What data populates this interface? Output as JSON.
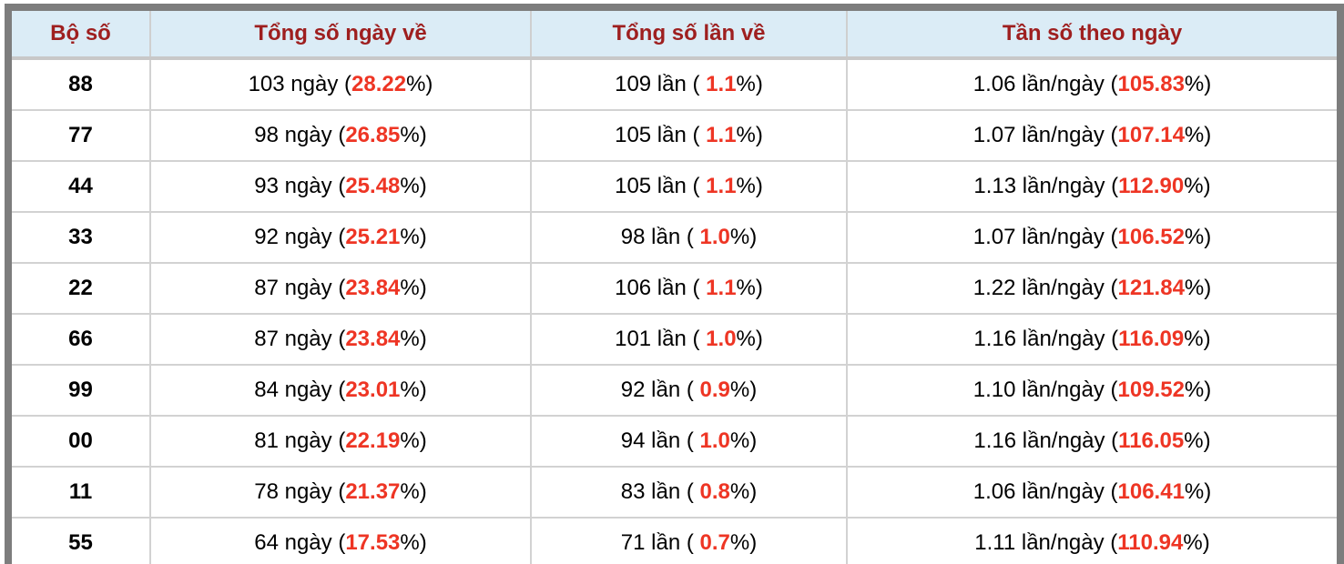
{
  "colors": {
    "frame_gray": "#7d7d7d",
    "header_bg": "#dbecf6",
    "header_text": "#9e1f1f",
    "highlight_red": "#ee3524",
    "grid_line": "#d2d2d2",
    "text_black": "#000000"
  },
  "table": {
    "headers": [
      "Bộ số",
      "Tổng số ngày về",
      "Tổng số lần về",
      "Tần số theo ngày"
    ],
    "rows": [
      {
        "pair": "88",
        "days": {
          "pre": "103 ngày (",
          "red": "28.22",
          "post": "%)"
        },
        "times": {
          "pre": "109 lần ( ",
          "red": "1.1",
          "post": "%)"
        },
        "freq": {
          "pre": "1.06 lần/ngày (",
          "red": "105.83",
          "post": "%)"
        }
      },
      {
        "pair": "77",
        "days": {
          "pre": "98 ngày (",
          "red": "26.85",
          "post": "%)"
        },
        "times": {
          "pre": "105 lần ( ",
          "red": "1.1",
          "post": "%)"
        },
        "freq": {
          "pre": "1.07 lần/ngày (",
          "red": "107.14",
          "post": "%)"
        }
      },
      {
        "pair": "44",
        "days": {
          "pre": "93 ngày (",
          "red": "25.48",
          "post": "%)"
        },
        "times": {
          "pre": "105 lần ( ",
          "red": "1.1",
          "post": "%)"
        },
        "freq": {
          "pre": "1.13 lần/ngày (",
          "red": "112.90",
          "post": "%)"
        }
      },
      {
        "pair": "33",
        "days": {
          "pre": "92 ngày (",
          "red": "25.21",
          "post": "%)"
        },
        "times": {
          "pre": "98 lần ( ",
          "red": "1.0",
          "post": "%)"
        },
        "freq": {
          "pre": "1.07 lần/ngày (",
          "red": "106.52",
          "post": "%)"
        }
      },
      {
        "pair": "22",
        "days": {
          "pre": "87 ngày (",
          "red": "23.84",
          "post": "%)"
        },
        "times": {
          "pre": "106 lần ( ",
          "red": "1.1",
          "post": "%)"
        },
        "freq": {
          "pre": "1.22 lần/ngày (",
          "red": "121.84",
          "post": "%)"
        }
      },
      {
        "pair": "66",
        "days": {
          "pre": "87 ngày (",
          "red": "23.84",
          "post": "%)"
        },
        "times": {
          "pre": "101 lần ( ",
          "red": "1.0",
          "post": "%)"
        },
        "freq": {
          "pre": "1.16 lần/ngày (",
          "red": "116.09",
          "post": "%)"
        }
      },
      {
        "pair": "99",
        "days": {
          "pre": "84 ngày (",
          "red": "23.01",
          "post": "%)"
        },
        "times": {
          "pre": "92 lần ( ",
          "red": "0.9",
          "post": "%)"
        },
        "freq": {
          "pre": "1.10 lần/ngày (",
          "red": "109.52",
          "post": "%)"
        }
      },
      {
        "pair": "00",
        "days": {
          "pre": "81 ngày (",
          "red": "22.19",
          "post": "%)"
        },
        "times": {
          "pre": "94 lần ( ",
          "red": "1.0",
          "post": "%)"
        },
        "freq": {
          "pre": "1.16 lần/ngày (",
          "red": "116.05",
          "post": "%)"
        }
      },
      {
        "pair": "11",
        "days": {
          "pre": "78 ngày (",
          "red": "21.37",
          "post": "%)"
        },
        "times": {
          "pre": "83 lần ( ",
          "red": "0.8",
          "post": "%)"
        },
        "freq": {
          "pre": "1.06 lần/ngày (",
          "red": "106.41",
          "post": "%)"
        }
      },
      {
        "pair": "55",
        "days": {
          "pre": "64 ngày (",
          "red": "17.53",
          "post": "%)"
        },
        "times": {
          "pre": "71 lần ( ",
          "red": "0.7",
          "post": "%)"
        },
        "freq": {
          "pre": "1.11 lần/ngày (",
          "red": "110.94",
          "post": "%)"
        }
      }
    ]
  }
}
